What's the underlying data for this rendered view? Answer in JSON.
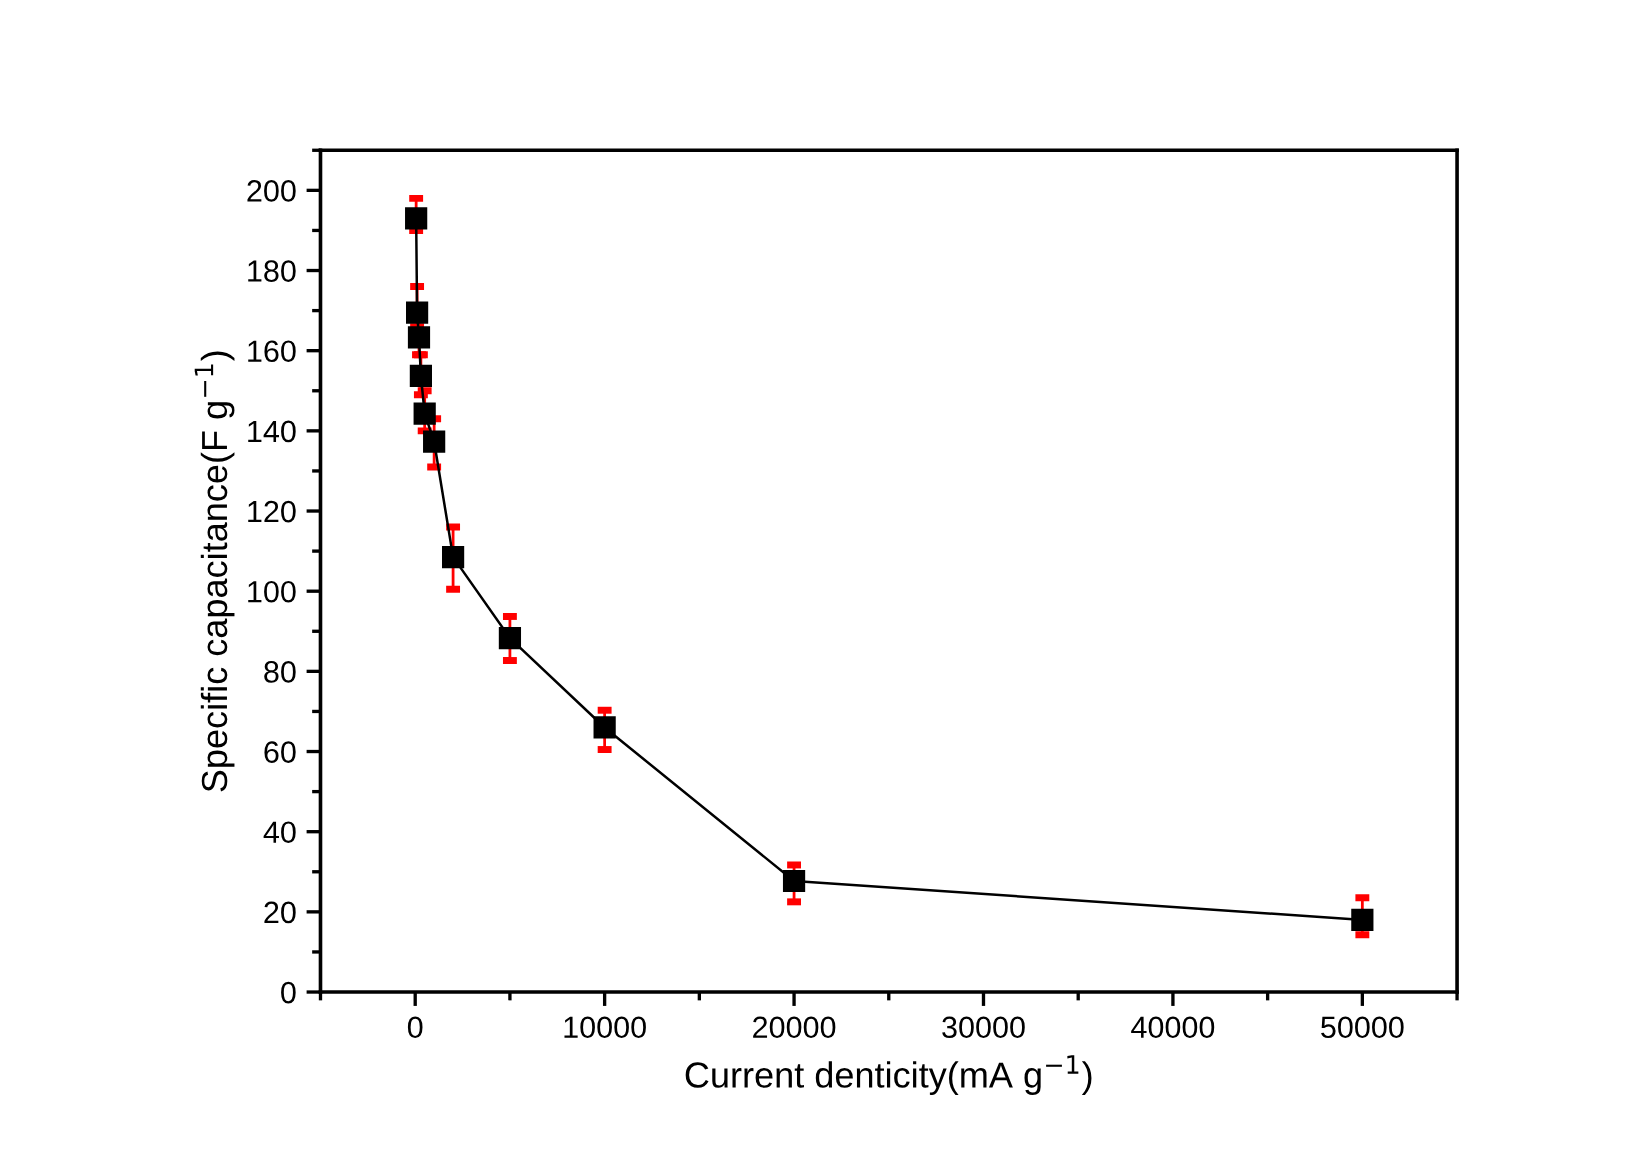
{
  "chart_data": {
    "type": "line",
    "xlabel": "Current denticity(mA g$^{−1}$)",
    "ylabel": "Specific capacitance(F g$^{−1}$)",
    "x": [
      50,
      100,
      200,
      300,
      500,
      1000,
      2000,
      5000,
      10000,
      20000,
      50000
    ],
    "series": [
      {
        "color": "#000000",
        "values": [
          193,
          169.5,
          163.3,
          153.7,
          144.3,
          137.3,
          108.5,
          88.3,
          66,
          27.7,
          18
        ],
        "errors": [
          [
            190,
            198
          ],
          [
            166,
            176
          ],
          [
            159,
            168
          ],
          [
            149,
            159
          ],
          [
            140,
            150
          ],
          [
            131,
            143
          ],
          [
            100.5,
            116
          ],
          [
            82.7,
            93.7
          ],
          [
            60.5,
            70.3
          ],
          [
            22.5,
            31.7
          ],
          [
            14.3,
            23.5
          ]
        ]
      }
    ],
    "xlim": [
      -5000,
      55000
    ],
    "xticks": [
      0,
      10000,
      20000,
      30000,
      40000,
      50000
    ],
    "ylim": [
      0,
      210
    ],
    "yticks": [
      0,
      20,
      40,
      60,
      80,
      100,
      120,
      140,
      160,
      180,
      200
    ],
    "marker": "square",
    "line_style": "solid",
    "grid": false,
    "legend": false
  }
}
